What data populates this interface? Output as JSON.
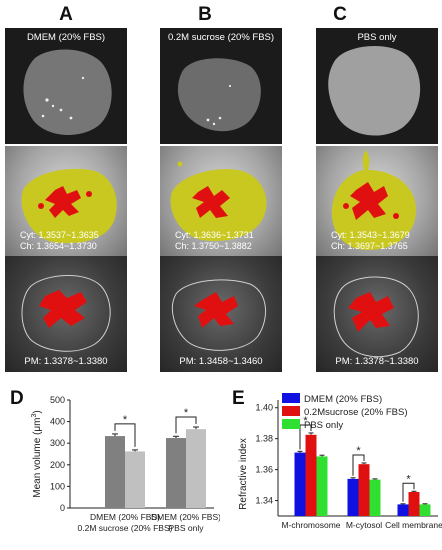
{
  "columns": [
    "A",
    "B",
    "C"
  ],
  "row1": {
    "labels": [
      "DMEM (20% FBS)",
      "0.2M sucrose (20% FBS)",
      "PBS  only"
    ]
  },
  "row2": {
    "panels": [
      {
        "cyt": "Cyt: 1.3537~1.3635",
        "ch": "Ch:  1.3654~1.3730"
      },
      {
        "cyt": "Cyt: 1.3636~1.3731",
        "ch": "Ch:  1.3750~1.3882"
      },
      {
        "cyt": "Cyt: 1.3543~1.3679",
        "ch": "Ch:  1.3697~1.3765"
      }
    ]
  },
  "row3": {
    "labels": [
      "PM: 1.3378~1.3380",
      "PM: 1.3458~1.3460",
      "PM: 1.3378~1.3380"
    ]
  },
  "panel_letters": {
    "d": "D",
    "e": "E"
  },
  "colors": {
    "cell_yellow": "#c8c820",
    "cell_red": "#e01010",
    "bar_dark": "#808080",
    "bar_light": "#c0c0c0",
    "e_blue": "#1010e0",
    "e_red": "#e01010",
    "e_green": "#30e030"
  },
  "chart_data": [
    {
      "type": "bar",
      "ylabel_main": "Mean volume (",
      "ylabel_unit": "μm",
      "ylabel_exp": "3",
      "ylabel_close": ")",
      "ylim": [
        0,
        500
      ],
      "yticks": [
        "0",
        "100",
        "200",
        "300",
        "400",
        "500"
      ],
      "groups": [
        {
          "label_line1": "DMEM (20% FBS)",
          "label_line2": "0.2M sucrose (20% FBS)",
          "values": [
            333,
            262
          ],
          "errors": [
            10,
            7
          ]
        },
        {
          "label_line1": "DMEM (20% FBS)",
          "label_line2": "PBS only",
          "values": [
            324,
            365
          ],
          "errors": [
            8,
            10
          ]
        }
      ],
      "significance": [
        "*",
        "*"
      ]
    },
    {
      "type": "bar",
      "ylabel": "Refractive index",
      "ylim": [
        1.33,
        1.405
      ],
      "yticks": [
        "1.34",
        "1.36",
        "1.38",
        "1.40"
      ],
      "categories": [
        "M-chromosome",
        "M-cytosol",
        "Cell membrane"
      ],
      "series": [
        {
          "name": "DMEM (20% FBS)",
          "values": [
            1.371,
            1.354,
            1.3375
          ],
          "errors": [
            0.0008,
            0.0007,
            0.0004
          ]
        },
        {
          "name": "0.2Msucrose (20% FBS)",
          "values": [
            1.3825,
            1.3635,
            1.3455
          ],
          "errors": [
            0.0012,
            0.0008,
            0.0005
          ]
        },
        {
          "name": "PBS only",
          "values": [
            1.3685,
            1.3535,
            1.3375
          ],
          "errors": [
            0.0008,
            0.0005,
            0.0004
          ]
        }
      ],
      "significance": [
        "*",
        "*",
        "*"
      ]
    }
  ]
}
